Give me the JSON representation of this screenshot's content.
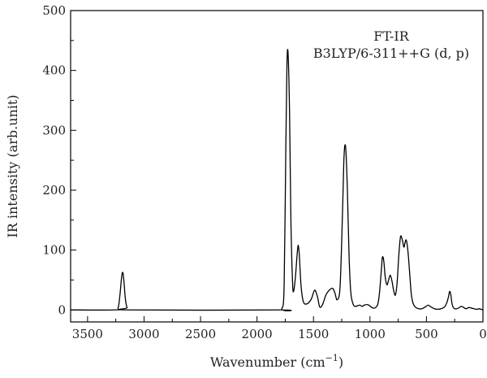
{
  "chart_data": {
    "type": "line",
    "title": "",
    "xlabel": "Wavenumber (cm",
    "xlabel_sup": "−1",
    "xlabel_close": ")",
    "ylabel": "IR intensity (arb.unit)",
    "xlim": [
      3650,
      0
    ],
    "ylim": [
      -20,
      500
    ],
    "x_ticks": [
      3500,
      3000,
      2500,
      2000,
      1500,
      1000,
      500,
      0
    ],
    "x_tick_labels": [
      "3500",
      "3000",
      "2500",
      "2000",
      "1500",
      "1000",
      "500",
      "0"
    ],
    "y_ticks": [
      0,
      100,
      200,
      300,
      400,
      500
    ],
    "y_tick_labels": [
      "0",
      "100",
      "200",
      "300",
      "400",
      "500"
    ],
    "grid": false,
    "line_color": "#000000",
    "annotations": [
      "FT-IR",
      "B3LYP/6-311++G (d, p)"
    ],
    "series": [
      {
        "x": [
          3650,
          3260,
          3230,
          3215,
          3200,
          3190,
          3180,
          3165,
          3150,
          3120,
          1800,
          1780,
          1760,
          1745,
          1735,
          1725,
          1712,
          1700,
          1685,
          1675,
          1660,
          1645,
          1635,
          1625,
          1610,
          1590,
          1560,
          1520,
          1490,
          1465,
          1445,
          1420,
          1390,
          1360,
          1330,
          1310,
          1290,
          1265,
          1245,
          1232,
          1222,
          1212,
          1200,
          1185,
          1170,
          1150,
          1130,
          1110,
          1090,
          1070,
          1050,
          1030,
          1010,
          990,
          970,
          950,
          930,
          915,
          900,
          890,
          878,
          865,
          850,
          835,
          820,
          805,
          790,
          775,
          760,
          745,
          730,
          715,
          700,
          690,
          680,
          670,
          660,
          648,
          635,
          620,
          600,
          570,
          540,
          510,
          485,
          460,
          430,
          400,
          370,
          340,
          320,
          305,
          295,
          285,
          275,
          265,
          250,
          230,
          210,
          190,
          170,
          150,
          125,
          100,
          80,
          55,
          35,
          15,
          0
        ],
        "y": [
          0,
          0,
          3,
          22,
          52,
          63,
          52,
          18,
          4,
          0,
          0,
          2,
          40,
          270,
          410,
          428,
          330,
          150,
          45,
          32,
          55,
          92,
          108,
          90,
          40,
          14,
          10,
          18,
          33,
          22,
          5,
          9,
          25,
          33,
          36,
          28,
          17,
          38,
          150,
          245,
          275,
          262,
          200,
          90,
          30,
          10,
          6,
          7,
          8,
          6,
          8,
          9,
          8,
          5,
          3,
          4,
          10,
          30,
          65,
          88,
          82,
          55,
          42,
          50,
          58,
          48,
          32,
          25,
          45,
          90,
          122,
          118,
          105,
          112,
          117,
          108,
          90,
          60,
          28,
          12,
          5,
          2,
          2,
          5,
          8,
          5,
          2,
          1,
          2,
          5,
          12,
          22,
          31,
          26,
          12,
          5,
          2,
          2,
          4,
          6,
          4,
          2,
          4,
          3,
          2,
          1,
          2,
          1,
          0
        ]
      }
    ]
  }
}
